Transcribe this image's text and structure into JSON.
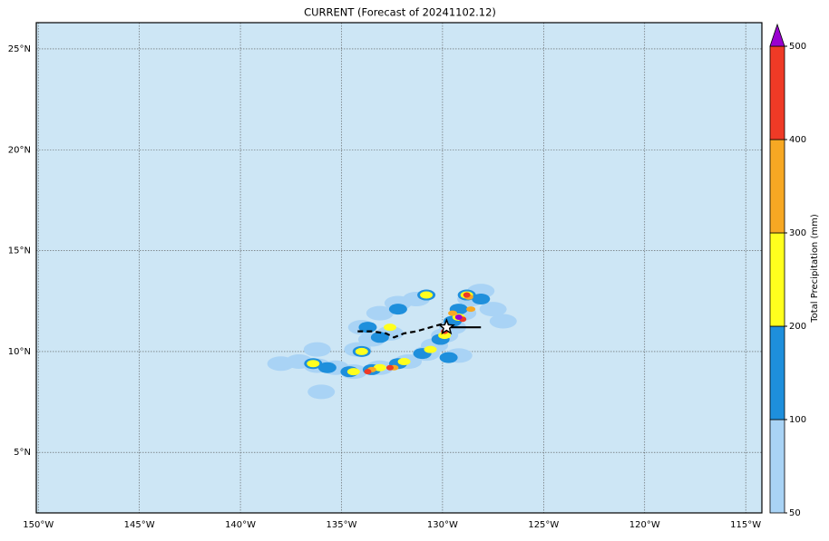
{
  "chart_data": {
    "type": "map",
    "title": "CURRENT (Forecast of 20241102.12)",
    "xlim": [
      -150.1,
      -114.2
    ],
    "ylim": [
      2,
      26.3
    ],
    "xticks": [
      {
        "value": -150,
        "label": "150°W"
      },
      {
        "value": -145,
        "label": "145°W"
      },
      {
        "value": -140,
        "label": "140°W"
      },
      {
        "value": -135,
        "label": "135°W"
      },
      {
        "value": -130,
        "label": "130°W"
      },
      {
        "value": -125,
        "label": "125°W"
      },
      {
        "value": -120,
        "label": "120°W"
      },
      {
        "value": -115,
        "label": "115°W"
      }
    ],
    "yticks": [
      {
        "value": 5,
        "label": "5°N"
      },
      {
        "value": 10,
        "label": "10°N"
      },
      {
        "value": 15,
        "label": "15°N"
      },
      {
        "value": 20,
        "label": "20°N"
      },
      {
        "value": 25,
        "label": "25°N"
      }
    ],
    "grid": true,
    "colorbar": {
      "label": "Total Precipitation (mm)",
      "levels": [
        50,
        100,
        200,
        300,
        400,
        500
      ],
      "colors": [
        "#a9d3f5",
        "#1e8fdc",
        "#ffff1e",
        "#f7a823",
        "#ef3a26"
      ],
      "extend_color": "#9a00d0"
    },
    "precip": {
      "lon": [
        -138.0,
        -137.1,
        -136.2,
        -135.3,
        -134.4,
        -133.1,
        -131.7,
        -130.8,
        -130.4,
        -129.9,
        -129.5,
        -129.0,
        -128.6,
        -128.1,
        -127.5,
        -127.0,
        -131.3,
        -132.2,
        -133.1,
        -134.0,
        -134.2,
        -133.5,
        -132.6,
        -136.2,
        -136.0,
        -129.2,
        -136.4,
        -135.7,
        -134.6,
        -133.5,
        -132.2,
        -131.0,
        -130.1,
        -129.5,
        -129.2,
        -128.8,
        -128.1,
        -130.8,
        -132.2,
        -133.7,
        -134.0,
        -133.1,
        -129.7,
        -134.4,
        -133.1,
        -131.9,
        -130.6,
        -129.9,
        -129.2,
        -128.8,
        -130.8,
        -132.6,
        -134.0,
        -136.4,
        -133.5,
        -132.4,
        -129.5,
        -128.7,
        -128.6,
        -133.7,
        -132.6,
        -128.8,
        -129.0,
        -129.9,
        -129.2
      ],
      "lat": [
        9.4,
        9.5,
        9.3,
        9.2,
        9.0,
        9.2,
        9.5,
        9.9,
        10.3,
        10.8,
        11.2,
        11.9,
        12.6,
        13.0,
        12.1,
        11.5,
        12.6,
        12.4,
        11.9,
        11.2,
        10.1,
        10.6,
        10.9,
        10.1,
        8.0,
        9.8,
        9.4,
        9.2,
        9.0,
        9.1,
        9.4,
        9.9,
        10.6,
        11.5,
        12.1,
        12.8,
        12.6,
        12.8,
        12.1,
        11.2,
        10.0,
        10.7,
        9.7,
        9.0,
        9.2,
        9.5,
        10.1,
        10.8,
        11.7,
        12.8,
        12.8,
        11.2,
        10.0,
        9.4,
        9.1,
        9.2,
        11.9,
        12.7,
        12.1,
        9.0,
        9.2,
        12.8,
        11.6,
        11.0,
        11.7
      ],
      "value": [
        75,
        75,
        75,
        75,
        75,
        75,
        75,
        75,
        75,
        75,
        75,
        75,
        75,
        75,
        75,
        75,
        75,
        75,
        75,
        75,
        75,
        75,
        75,
        75,
        75,
        75,
        150,
        150,
        150,
        150,
        150,
        150,
        150,
        150,
        150,
        150,
        150,
        150,
        150,
        150,
        150,
        150,
        150,
        250,
        250,
        250,
        250,
        250,
        250,
        250,
        250,
        250,
        250,
        250,
        350,
        350,
        350,
        350,
        350,
        450,
        450,
        450,
        450,
        450,
        550
      ]
    },
    "tracks": [
      {
        "style": "dashed",
        "lon": [
          -134.2,
          -133.5,
          -132.8,
          -132.4,
          -131.9,
          -131.3,
          -130.6,
          -129.9
        ],
        "lat": [
          11.0,
          11.0,
          10.9,
          10.7,
          10.9,
          11.0,
          11.2,
          11.4
        ]
      },
      {
        "style": "solid",
        "lon": [
          -129.9,
          -128.1
        ],
        "lat": [
          11.2,
          11.2
        ]
      }
    ],
    "star": {
      "lon": -129.8,
      "lat": 11.2
    }
  }
}
